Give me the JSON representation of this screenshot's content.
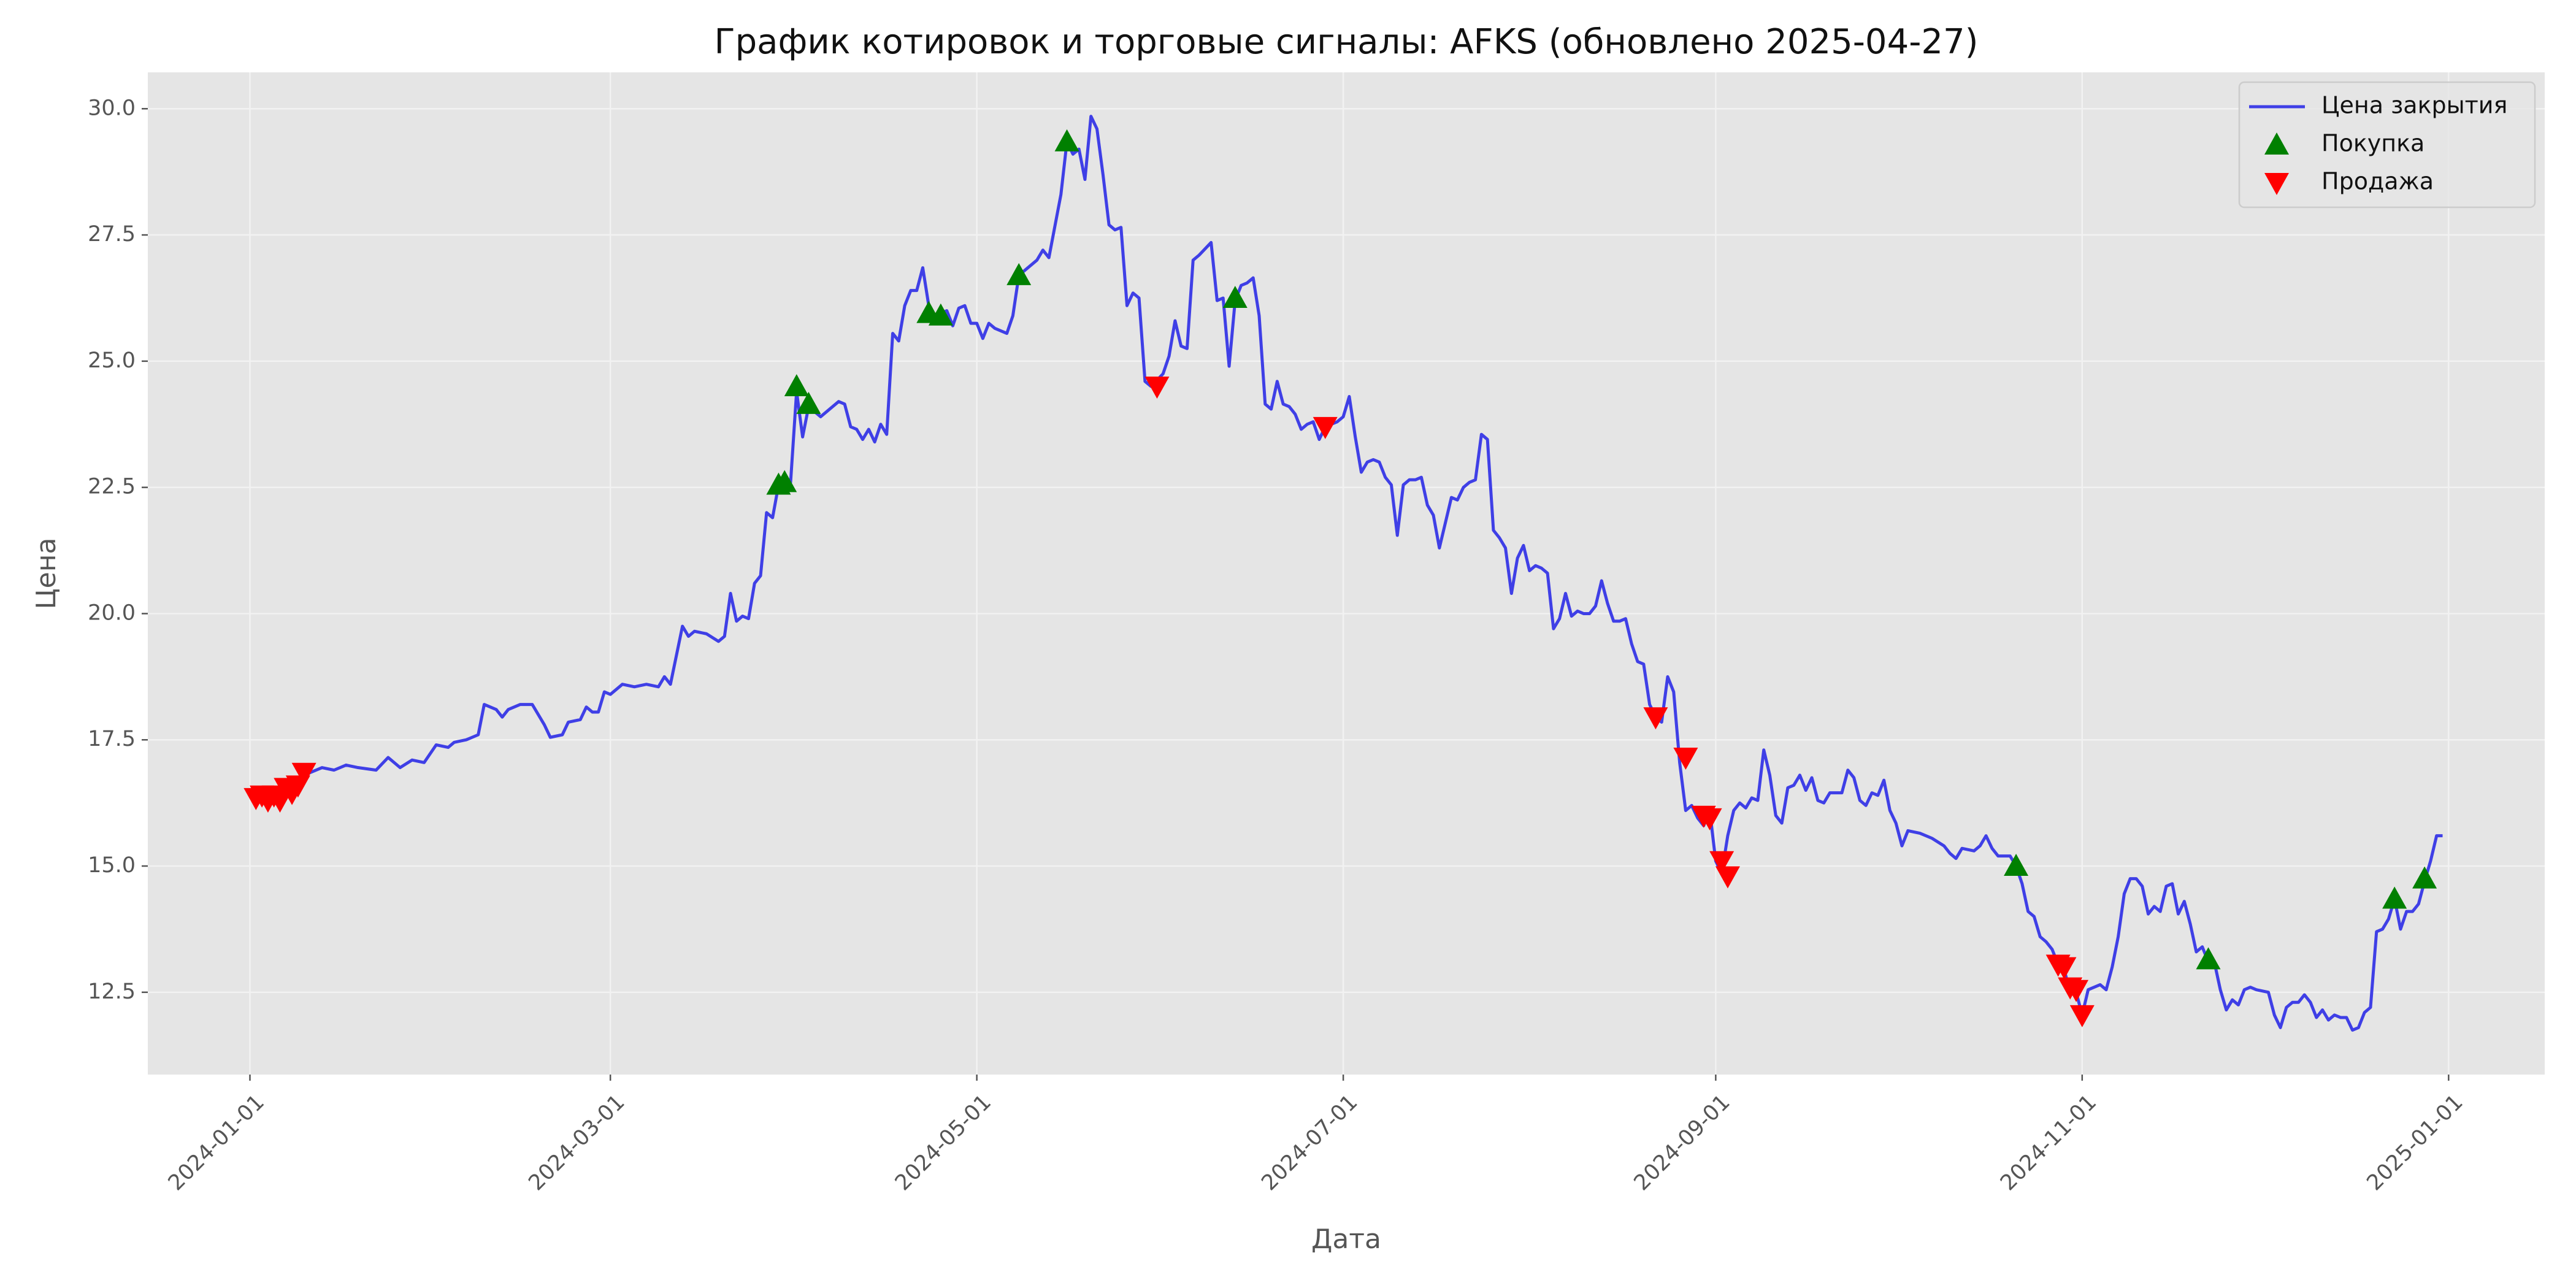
{
  "chart_data": {
    "type": "line",
    "title": "График котировок и торговые сигналы: AFKS (обновлено 2025-04-27)",
    "xlabel": "Дата",
    "ylabel": "Цена",
    "xlim": [
      "2023-12-15",
      "2025-01-17"
    ],
    "xticks": [
      "2024-01-01",
      "2024-03-01",
      "2024-05-01",
      "2024-07-01",
      "2024-09-01",
      "2024-11-01",
      "2025-01-01"
    ],
    "ylim": [
      10.87,
      30.72
    ],
    "yticks": [
      12.5,
      {
        "value": 15,
        "label": "15.0"
      },
      17.5,
      {
        "value": 20,
        "label": "20.0"
      },
      22.5,
      {
        "value": 25,
        "label": "25.0"
      },
      27.5,
      {
        "value": 30,
        "label": "30.0"
      }
    ],
    "grid": true,
    "legend": "upper right",
    "series": [
      {
        "name": "Цена закрытия",
        "kind": "line",
        "color": "#3f3fe6",
        "x": [
          "2024-01-03",
          "2024-01-04",
          "2024-01-05",
          "2024-01-07",
          "2024-01-09",
          "2024-01-11",
          "2024-01-13",
          "2024-01-15",
          "2024-01-17",
          "2024-01-19",
          "2024-01-22",
          "2024-01-24",
          "2024-01-26",
          "2024-01-28",
          "2024-01-30",
          "2024-02-01",
          "2024-02-03",
          "2024-02-04",
          "2024-02-06",
          "2024-02-08",
          "2024-02-09",
          "2024-02-11",
          "2024-02-12",
          "2024-02-13",
          "2024-02-15",
          "2024-02-17",
          "2024-02-19",
          "2024-02-20",
          "2024-02-22",
          "2024-02-23",
          "2024-02-25",
          "2024-02-26",
          "2024-02-27",
          "2024-02-28",
          "2024-02-29",
          "2024-03-01",
          "2024-03-03",
          "2024-03-05",
          "2024-03-07",
          "2024-03-09",
          "2024-03-10",
          "2024-03-11",
          "2024-03-13",
          "2024-03-14",
          "2024-03-15",
          "2024-03-17",
          "2024-03-19",
          "2024-03-20",
          "2024-03-21",
          "2024-03-22",
          "2024-03-23",
          "2024-03-24",
          "2024-03-25",
          "2024-03-26",
          "2024-03-27",
          "2024-03-28",
          "2024-03-29",
          "2024-03-30",
          "2024-03-31",
          "2024-04-01",
          "2024-04-02",
          "2024-04-03",
          "2024-04-05",
          "2024-04-06",
          "2024-04-08",
          "2024-04-09",
          "2024-04-10",
          "2024-04-11",
          "2024-04-12",
          "2024-04-13",
          "2024-04-14",
          "2024-04-15",
          "2024-04-16",
          "2024-04-17",
          "2024-04-18",
          "2024-04-19",
          "2024-04-20",
          "2024-04-21",
          "2024-04-22",
          "2024-04-23",
          "2024-04-24",
          "2024-04-26",
          "2024-04-27",
          "2024-04-28",
          "2024-04-29",
          "2024-04-30",
          "2024-05-01",
          "2024-05-02",
          "2024-05-03",
          "2024-05-04",
          "2024-05-06",
          "2024-05-07",
          "2024-05-08",
          "2024-05-09",
          "2024-05-11",
          "2024-05-12",
          "2024-05-13",
          "2024-05-15",
          "2024-05-16",
          "2024-05-17",
          "2024-05-18",
          "2024-05-19",
          "2024-05-20",
          "2024-05-21",
          "2024-05-22",
          "2024-05-23",
          "2024-05-24",
          "2024-05-25",
          "2024-05-26",
          "2024-05-27",
          "2024-05-28",
          "2024-05-29",
          "2024-05-30",
          "2024-06-01",
          "2024-06-02",
          "2024-06-03",
          "2024-06-04",
          "2024-06-05",
          "2024-06-06",
          "2024-06-07",
          "2024-06-09",
          "2024-06-10",
          "2024-06-11",
          "2024-06-12",
          "2024-06-13",
          "2024-06-14",
          "2024-06-15",
          "2024-06-16",
          "2024-06-17",
          "2024-06-18",
          "2024-06-19",
          "2024-06-20",
          "2024-06-21",
          "2024-06-22",
          "2024-06-23",
          "2024-06-24",
          "2024-06-25",
          "2024-06-26",
          "2024-06-27",
          "2024-06-28",
          "2024-06-29",
          "2024-06-30",
          "2024-07-01",
          "2024-07-02",
          "2024-07-03",
          "2024-07-04",
          "2024-07-05",
          "2024-07-06",
          "2024-07-07",
          "2024-07-08",
          "2024-07-09",
          "2024-07-10",
          "2024-07-11",
          "2024-07-12",
          "2024-07-13",
          "2024-07-14",
          "2024-07-15",
          "2024-07-16",
          "2024-07-17",
          "2024-07-18",
          "2024-07-19",
          "2024-07-20",
          "2024-07-21",
          "2024-07-22",
          "2024-07-23",
          "2024-07-24",
          "2024-07-25",
          "2024-07-26",
          "2024-07-27",
          "2024-07-28",
          "2024-07-29",
          "2024-07-30",
          "2024-07-31",
          "2024-08-01",
          "2024-08-02",
          "2024-08-03",
          "2024-08-04",
          "2024-08-05",
          "2024-08-06",
          "2024-08-07",
          "2024-08-08",
          "2024-08-09",
          "2024-08-10",
          "2024-08-11",
          "2024-08-12",
          "2024-08-13",
          "2024-08-14",
          "2024-08-15",
          "2024-08-16",
          "2024-08-17",
          "2024-08-18",
          "2024-08-19",
          "2024-08-20",
          "2024-08-21",
          "2024-08-22",
          "2024-08-23",
          "2024-08-24",
          "2024-08-25",
          "2024-08-26",
          "2024-08-27",
          "2024-08-28",
          "2024-08-29",
          "2024-08-30",
          "2024-08-31",
          "2024-09-01",
          "2024-09-02",
          "2024-09-03",
          "2024-09-04",
          "2024-09-05",
          "2024-09-06",
          "2024-09-07",
          "2024-09-08",
          "2024-09-09",
          "2024-09-10",
          "2024-09-11",
          "2024-09-12",
          "2024-09-13",
          "2024-09-14",
          "2024-09-15",
          "2024-09-16",
          "2024-09-17",
          "2024-09-18",
          "2024-09-19",
          "2024-09-20",
          "2024-09-21",
          "2024-09-22",
          "2024-09-23",
          "2024-09-24",
          "2024-09-25",
          "2024-09-26",
          "2024-09-27",
          "2024-09-28",
          "2024-09-29",
          "2024-09-30",
          "2024-10-01",
          "2024-10-02",
          "2024-10-03",
          "2024-10-05",
          "2024-10-07",
          "2024-10-09",
          "2024-10-10",
          "2024-10-11",
          "2024-10-12",
          "2024-10-14",
          "2024-10-15",
          "2024-10-16",
          "2024-10-17",
          "2024-10-18",
          "2024-10-20",
          "2024-10-21",
          "2024-10-22",
          "2024-10-23",
          "2024-10-24",
          "2024-10-25",
          "2024-10-26",
          "2024-10-27",
          "2024-10-28",
          "2024-10-29",
          "2024-10-30",
          "2024-10-31",
          "2024-11-01",
          "2024-11-02",
          "2024-11-03",
          "2024-11-04",
          "2024-11-05",
          "2024-11-06",
          "2024-11-07",
          "2024-11-08",
          "2024-11-09",
          "2024-11-10",
          "2024-11-11",
          "2024-11-12",
          "2024-11-13",
          "2024-11-14",
          "2024-11-15",
          "2024-11-16",
          "2024-11-17",
          "2024-11-18",
          "2024-11-19",
          "2024-11-20",
          "2024-11-21",
          "2024-11-22",
          "2024-11-23",
          "2024-11-24",
          "2024-11-25",
          "2024-11-26",
          "2024-11-27",
          "2024-11-28",
          "2024-11-29",
          "2024-11-30",
          "2024-12-02",
          "2024-12-03",
          "2024-12-04",
          "2024-12-05",
          "2024-12-06",
          "2024-12-07",
          "2024-12-08",
          "2024-12-09",
          "2024-12-10",
          "2024-12-11",
          "2024-12-12",
          "2024-12-13",
          "2024-12-14",
          "2024-12-15",
          "2024-12-16",
          "2024-12-17",
          "2024-12-18",
          "2024-12-19",
          "2024-12-20",
          "2024-12-21",
          "2024-12-22",
          "2024-12-23",
          "2024-12-24",
          "2024-12-25",
          "2024-12-26",
          "2024-12-27",
          "2024-12-28",
          "2024-12-29",
          "2024-12-30",
          "2024-12-31"
        ],
        "values": [
          16.4,
          16.35,
          16.45,
          16.5,
          16.7,
          16.85,
          16.95,
          16.9,
          17.0,
          16.95,
          16.9,
          17.15,
          16.95,
          17.1,
          17.05,
          17.4,
          17.35,
          17.45,
          17.5,
          17.6,
          18.2,
          18.1,
          17.95,
          18.1,
          18.2,
          18.2,
          17.8,
          17.55,
          17.6,
          17.85,
          17.9,
          18.15,
          18.05,
          18.05,
          18.45,
          18.4,
          18.6,
          18.55,
          18.6,
          18.55,
          18.75,
          18.6,
          19.75,
          19.55,
          19.65,
          19.6,
          19.45,
          19.55,
          20.4,
          19.85,
          19.95,
          19.9,
          20.6,
          20.75,
          22.0,
          21.9,
          22.55,
          22.7,
          22.6,
          24.4,
          23.5,
          24.1,
          23.9,
          24.0,
          24.2,
          24.15,
          23.7,
          23.65,
          23.45,
          23.65,
          23.4,
          23.75,
          23.55,
          25.55,
          25.4,
          26.1,
          26.4,
          26.4,
          26.85,
          26.1,
          25.9,
          26.0,
          25.7,
          26.05,
          26.1,
          25.75,
          25.75,
          25.45,
          25.75,
          25.65,
          25.55,
          25.9,
          26.7,
          26.8,
          27.0,
          27.2,
          27.05,
          28.3,
          29.35,
          29.1,
          29.2,
          28.6,
          29.85,
          29.6,
          28.7,
          27.7,
          27.6,
          27.65,
          26.1,
          26.35,
          26.25,
          24.6,
          24.5,
          24.75,
          25.1,
          25.8,
          25.3,
          25.25,
          27.0,
          27.1,
          27.35,
          26.2,
          26.25,
          24.9,
          26.2,
          26.5,
          26.55,
          26.65,
          25.9,
          24.15,
          24.05,
          24.6,
          24.15,
          24.1,
          23.95,
          23.65,
          23.75,
          23.8,
          23.45,
          23.7,
          23.75,
          23.8,
          23.9,
          24.3,
          23.5,
          22.8,
          23.0,
          23.05,
          23.0,
          22.7,
          22.55,
          21.55,
          22.55,
          22.65,
          22.65,
          22.7,
          22.15,
          21.95,
          21.3,
          21.8,
          22.3,
          22.25,
          22.5,
          22.6,
          22.65,
          23.55,
          23.45,
          21.65,
          21.5,
          21.3,
          20.4,
          21.1,
          21.35,
          20.85,
          20.95,
          20.9,
          20.8,
          19.7,
          19.9,
          20.4,
          19.95,
          20.05,
          20.0,
          20.0,
          20.15,
          20.65,
          20.2,
          19.85,
          19.85,
          19.9,
          19.4,
          19.05,
          19.0,
          18.2,
          17.95,
          17.85,
          18.75,
          18.45,
          17.05,
          16.1,
          16.2,
          15.95,
          15.8,
          16.1,
          15.1,
          14.85,
          15.6,
          16.1,
          16.25,
          16.15,
          16.35,
          16.3,
          17.3,
          16.8,
          16.0,
          15.85,
          16.55,
          16.6,
          16.8,
          16.5,
          16.75,
          16.3,
          16.25,
          16.45,
          16.45,
          16.45,
          16.9,
          16.75,
          16.3,
          16.2,
          16.45,
          16.4,
          16.7,
          16.1,
          15.85,
          15.4,
          15.7,
          15.65,
          15.55,
          15.4,
          15.25,
          15.15,
          15.35,
          15.3,
          15.4,
          15.6,
          15.35,
          15.2,
          15.2,
          15.0,
          14.65,
          14.1,
          14.0,
          13.6,
          13.5,
          13.35,
          13.05,
          12.95,
          12.5,
          12.5,
          12.05,
          12.55,
          12.6,
          12.65,
          12.55,
          13.0,
          13.6,
          14.45,
          14.75,
          14.75,
          14.6,
          14.05,
          14.2,
          14.1,
          14.6,
          14.65,
          14.05,
          14.3,
          13.85,
          13.3,
          13.4,
          13.1,
          13.1,
          12.55,
          12.15,
          12.35,
          12.25,
          12.55,
          12.6,
          12.55,
          12.5,
          12.05,
          11.8,
          12.2,
          12.3,
          12.3,
          12.45,
          12.3,
          12.0,
          12.15,
          11.95,
          12.05,
          12.0,
          12.0,
          11.75,
          11.8,
          12.1,
          12.2,
          13.7,
          13.75,
          13.95,
          14.35,
          13.75,
          14.1,
          14.1,
          14.25,
          14.7,
          15.1,
          15.6,
          15.6
        ]
      },
      {
        "name": "Покупка",
        "kind": "scatter",
        "marker": "triangle-up",
        "color": "#008000",
        "x": [
          "2024-03-29",
          "2024-03-30",
          "2024-04-01",
          "2024-04-03",
          "2024-04-23",
          "2024-04-25",
          "2024-05-08",
          "2024-05-16",
          "2024-06-13",
          "2024-10-21",
          "2024-11-22",
          "2024-12-23",
          "2024-12-28"
        ],
        "values": [
          22.55,
          22.6,
          24.5,
          24.15,
          25.95,
          25.9,
          26.7,
          29.35,
          26.25,
          15.0,
          13.15,
          14.35,
          14.75
        ]
      },
      {
        "name": "Продажа",
        "kind": "scatter",
        "marker": "triangle-down",
        "color": "#ff0000",
        "x": [
          "2024-01-02",
          "2024-01-03",
          "2024-01-04",
          "2024-01-05",
          "2024-01-06",
          "2024-01-07",
          "2024-01-08",
          "2024-01-09",
          "2024-01-10",
          "2024-05-31",
          "2024-06-28",
          "2024-08-22",
          "2024-08-27",
          "2024-08-30",
          "2024-08-31",
          "2024-09-02",
          "2024-09-03",
          "2024-10-28",
          "2024-10-29",
          "2024-10-30",
          "2024-10-31",
          "2024-11-01"
        ],
        "values": [
          16.35,
          16.4,
          16.3,
          16.4,
          16.3,
          16.55,
          16.45,
          16.6,
          16.85,
          24.5,
          23.7,
          17.95,
          17.15,
          16.0,
          15.95,
          15.1,
          14.8,
          13.05,
          13.0,
          12.6,
          12.55,
          12.05
        ]
      }
    ]
  }
}
